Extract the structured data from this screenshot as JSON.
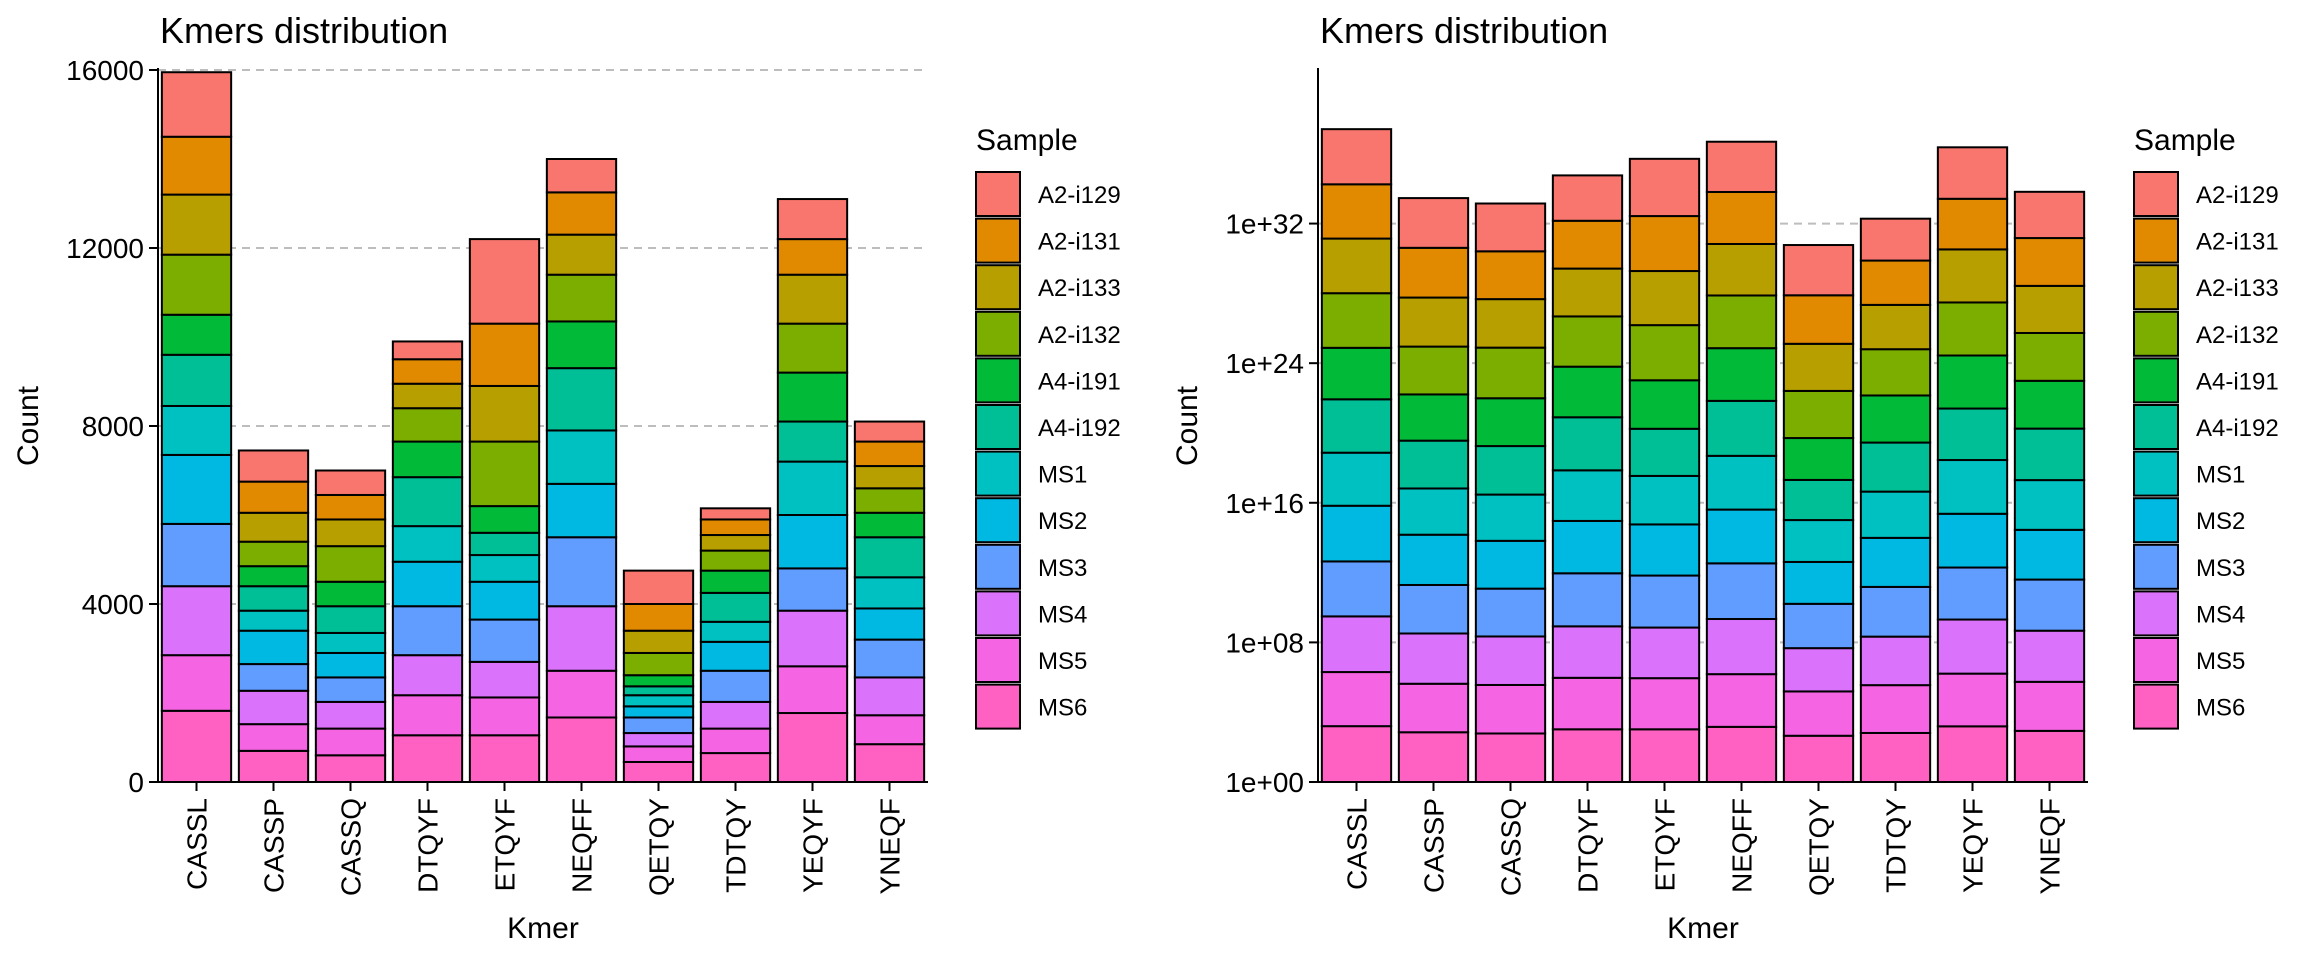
{
  "chart_data": [
    {
      "type": "bar",
      "stacked": true,
      "scale": "linear",
      "title": "Kmers distribution",
      "xlabel": "Kmer",
      "ylabel": "Count",
      "ylim": [
        0,
        16000
      ],
      "yticks": [
        0,
        4000,
        8000,
        12000,
        16000
      ],
      "ytick_labels": [
        "0",
        "4000",
        "8000",
        "12000",
        "16000"
      ],
      "grid": "horizontal dashed",
      "legend": {
        "title": "Sample",
        "position": "right"
      },
      "categories": [
        "CASSL",
        "CASSP",
        "CASSQ",
        "DTQYF",
        "ETQYF",
        "NEQFF",
        "QETQY",
        "TDTQY",
        "YEQYF",
        "YNEQF"
      ],
      "series": [
        {
          "name": "MS6",
          "color": "#FF61C3",
          "values": [
            1600,
            700,
            600,
            1050,
            1050,
            1450,
            450,
            650,
            1550,
            850
          ]
        },
        {
          "name": "MS5",
          "color": "#F564E3",
          "values": [
            1250,
            600,
            600,
            900,
            850,
            1050,
            350,
            550,
            1050,
            650
          ]
        },
        {
          "name": "MS4",
          "color": "#DB72FB",
          "values": [
            1550,
            750,
            600,
            900,
            800,
            1450,
            300,
            600,
            1250,
            850
          ]
        },
        {
          "name": "MS3",
          "color": "#619CFF",
          "values": [
            1400,
            600,
            550,
            1100,
            950,
            1550,
            350,
            700,
            950,
            850
          ]
        },
        {
          "name": "MS2",
          "color": "#00B9E3",
          "values": [
            1550,
            750,
            550,
            1000,
            850,
            1200,
            250,
            650,
            1200,
            700
          ]
        },
        {
          "name": "MS1",
          "color": "#00C1C1",
          "values": [
            1100,
            450,
            450,
            800,
            600,
            1200,
            250,
            450,
            1200,
            700
          ]
        },
        {
          "name": "A4-i192",
          "color": "#00BF96",
          "values": [
            1150,
            550,
            600,
            1100,
            500,
            1400,
            200,
            650,
            900,
            900
          ]
        },
        {
          "name": "A4-i191",
          "color": "#00BA38",
          "values": [
            900,
            450,
            550,
            800,
            600,
            1050,
            250,
            500,
            1100,
            550
          ]
        },
        {
          "name": "A2-i132",
          "color": "#7CAE00",
          "values": [
            1350,
            550,
            800,
            750,
            1450,
            1050,
            500,
            450,
            1100,
            550
          ]
        },
        {
          "name": "A2-i133",
          "color": "#B79F00",
          "values": [
            1350,
            650,
            600,
            550,
            1250,
            900,
            500,
            350,
            1100,
            500
          ]
        },
        {
          "name": "A2-i131",
          "color": "#E18A00",
          "values": [
            1300,
            700,
            550,
            550,
            1400,
            950,
            600,
            350,
            800,
            550
          ]
        },
        {
          "name": "A2-i129",
          "color": "#F8766D",
          "values": [
            1450,
            700,
            550,
            400,
            1900,
            750,
            750,
            250,
            900,
            450
          ]
        }
      ]
    },
    {
      "type": "bar",
      "stacked": true,
      "scale": "log10",
      "title": "Kmers distribution",
      "xlabel": "Kmer",
      "ylabel": "Count",
      "ylim_log10": [
        0,
        40.8
      ],
      "yticks_log10": [
        0,
        8,
        16,
        24,
        32
      ],
      "ytick_labels": [
        "1e+00",
        "1e+08",
        "1e+16",
        "1e+24",
        "1e+32"
      ],
      "grid": "horizontal dashed",
      "legend": {
        "title": "Sample",
        "position": "right"
      },
      "categories": [
        "CASSL",
        "CASSP",
        "CASSQ",
        "DTQYF",
        "ETQYF",
        "NEQFF",
        "QETQY",
        "TDTQY",
        "YEQYF",
        "YNEQF"
      ],
      "series": [
        {
          "name": "MS6",
          "color": "#FF61C3",
          "values": [
            3.2,
            2.85,
            2.78,
            3.02,
            3.02,
            3.16,
            2.65,
            2.81,
            3.19,
            2.93
          ]
        },
        {
          "name": "MS5",
          "color": "#F564E3",
          "values": [
            3.1,
            2.78,
            2.78,
            2.95,
            2.93,
            3.02,
            2.54,
            2.74,
            3.02,
            2.81
          ]
        },
        {
          "name": "MS4",
          "color": "#DB72FB",
          "values": [
            3.19,
            2.88,
            2.78,
            2.95,
            2.9,
            3.16,
            2.48,
            2.78,
            3.1,
            2.93
          ]
        },
        {
          "name": "MS3",
          "color": "#619CFF",
          "values": [
            3.15,
            2.78,
            2.74,
            3.04,
            2.98,
            3.19,
            2.54,
            2.85,
            2.98,
            2.93
          ]
        },
        {
          "name": "MS2",
          "color": "#00B9E3",
          "values": [
            3.19,
            2.88,
            2.74,
            3.0,
            2.93,
            3.08,
            2.4,
            2.81,
            3.08,
            2.85
          ]
        },
        {
          "name": "MS1",
          "color": "#00C1C1",
          "values": [
            3.04,
            2.65,
            2.65,
            2.9,
            2.78,
            3.08,
            2.4,
            2.65,
            3.08,
            2.85
          ]
        },
        {
          "name": "A4-i192",
          "color": "#00BF96",
          "values": [
            3.06,
            2.74,
            2.78,
            3.04,
            2.7,
            3.15,
            2.3,
            2.81,
            2.95,
            2.95
          ]
        },
        {
          "name": "A4-i191",
          "color": "#00BA38",
          "values": [
            2.95,
            2.65,
            2.74,
            2.9,
            2.78,
            3.02,
            2.4,
            2.7,
            3.04,
            2.74
          ]
        },
        {
          "name": "A2-i132",
          "color": "#7CAE00",
          "values": [
            3.13,
            2.74,
            2.9,
            2.88,
            3.16,
            3.02,
            2.7,
            2.65,
            3.04,
            2.74
          ]
        },
        {
          "name": "A2-i133",
          "color": "#B79F00",
          "values": [
            3.13,
            2.81,
            2.78,
            2.74,
            3.1,
            2.95,
            2.7,
            2.54,
            3.04,
            2.7
          ]
        },
        {
          "name": "A2-i131",
          "color": "#E18A00",
          "values": [
            3.11,
            2.85,
            2.74,
            2.74,
            3.15,
            2.98,
            2.78,
            2.54,
            2.9,
            2.74
          ]
        },
        {
          "name": "A2-i129",
          "color": "#F8766D",
          "values": [
            3.16,
            2.85,
            2.74,
            2.6,
            3.28,
            2.88,
            2.88,
            2.4,
            2.95,
            2.65
          ]
        }
      ]
    }
  ]
}
